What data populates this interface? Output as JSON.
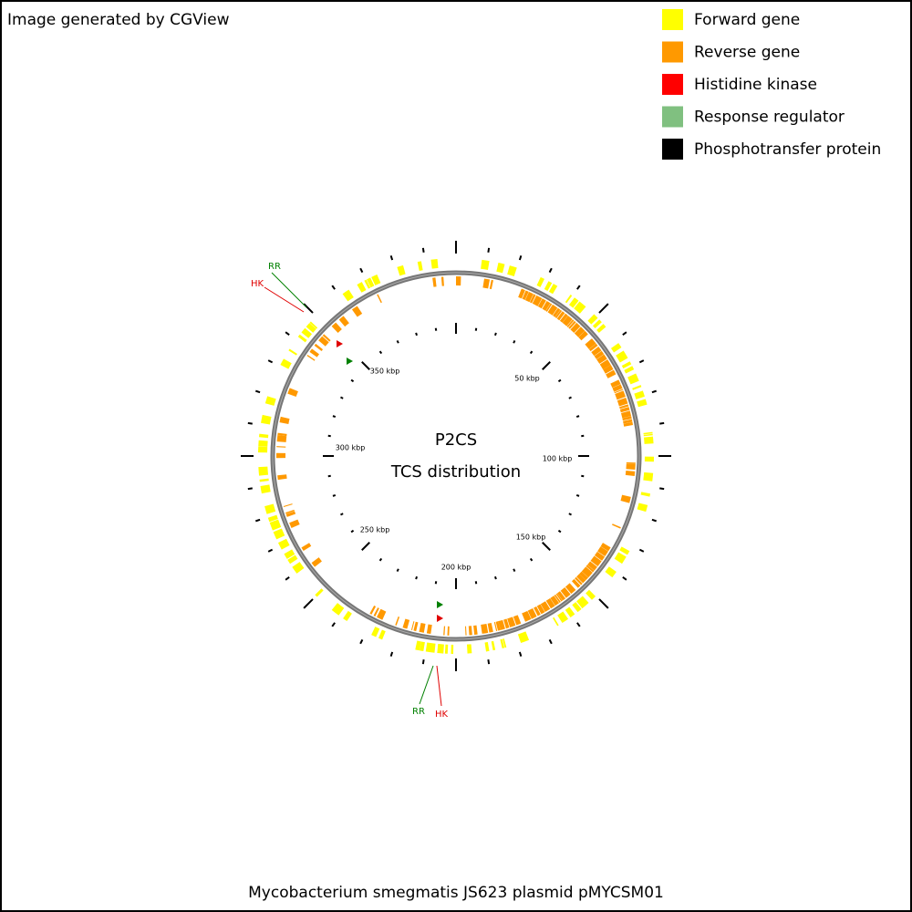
{
  "header": {
    "credit": "Image generated by CGView"
  },
  "legend": [
    {
      "label": "Forward gene",
      "color": "#ffff00"
    },
    {
      "label": "Reverse gene",
      "color": "#ff9900"
    },
    {
      "label": "Histidine kinase",
      "color": "#ff0000"
    },
    {
      "label": "Response regulator",
      "color": "#80c080"
    },
    {
      "label": "Phosphotransfer protein",
      "color": "#000000"
    }
  ],
  "map": {
    "center_title": "P2CS",
    "center_subtitle": "TCS distribution",
    "scale_labels": [
      "50 kbp",
      "100 kbp",
      "150 kbp",
      "200 kbp",
      "250 kbp",
      "300 kbp",
      "350 kbp"
    ],
    "annotations": [
      {
        "label": "RR",
        "color": "#008000"
      },
      {
        "label": "HK",
        "color": "#e00000"
      },
      {
        "label": "RR",
        "color": "#008000"
      },
      {
        "label": "HK",
        "color": "#e00000"
      }
    ]
  },
  "footer": {
    "title": "Mycobacterium smegmatis JS623 plasmid pMYCSM01"
  }
}
